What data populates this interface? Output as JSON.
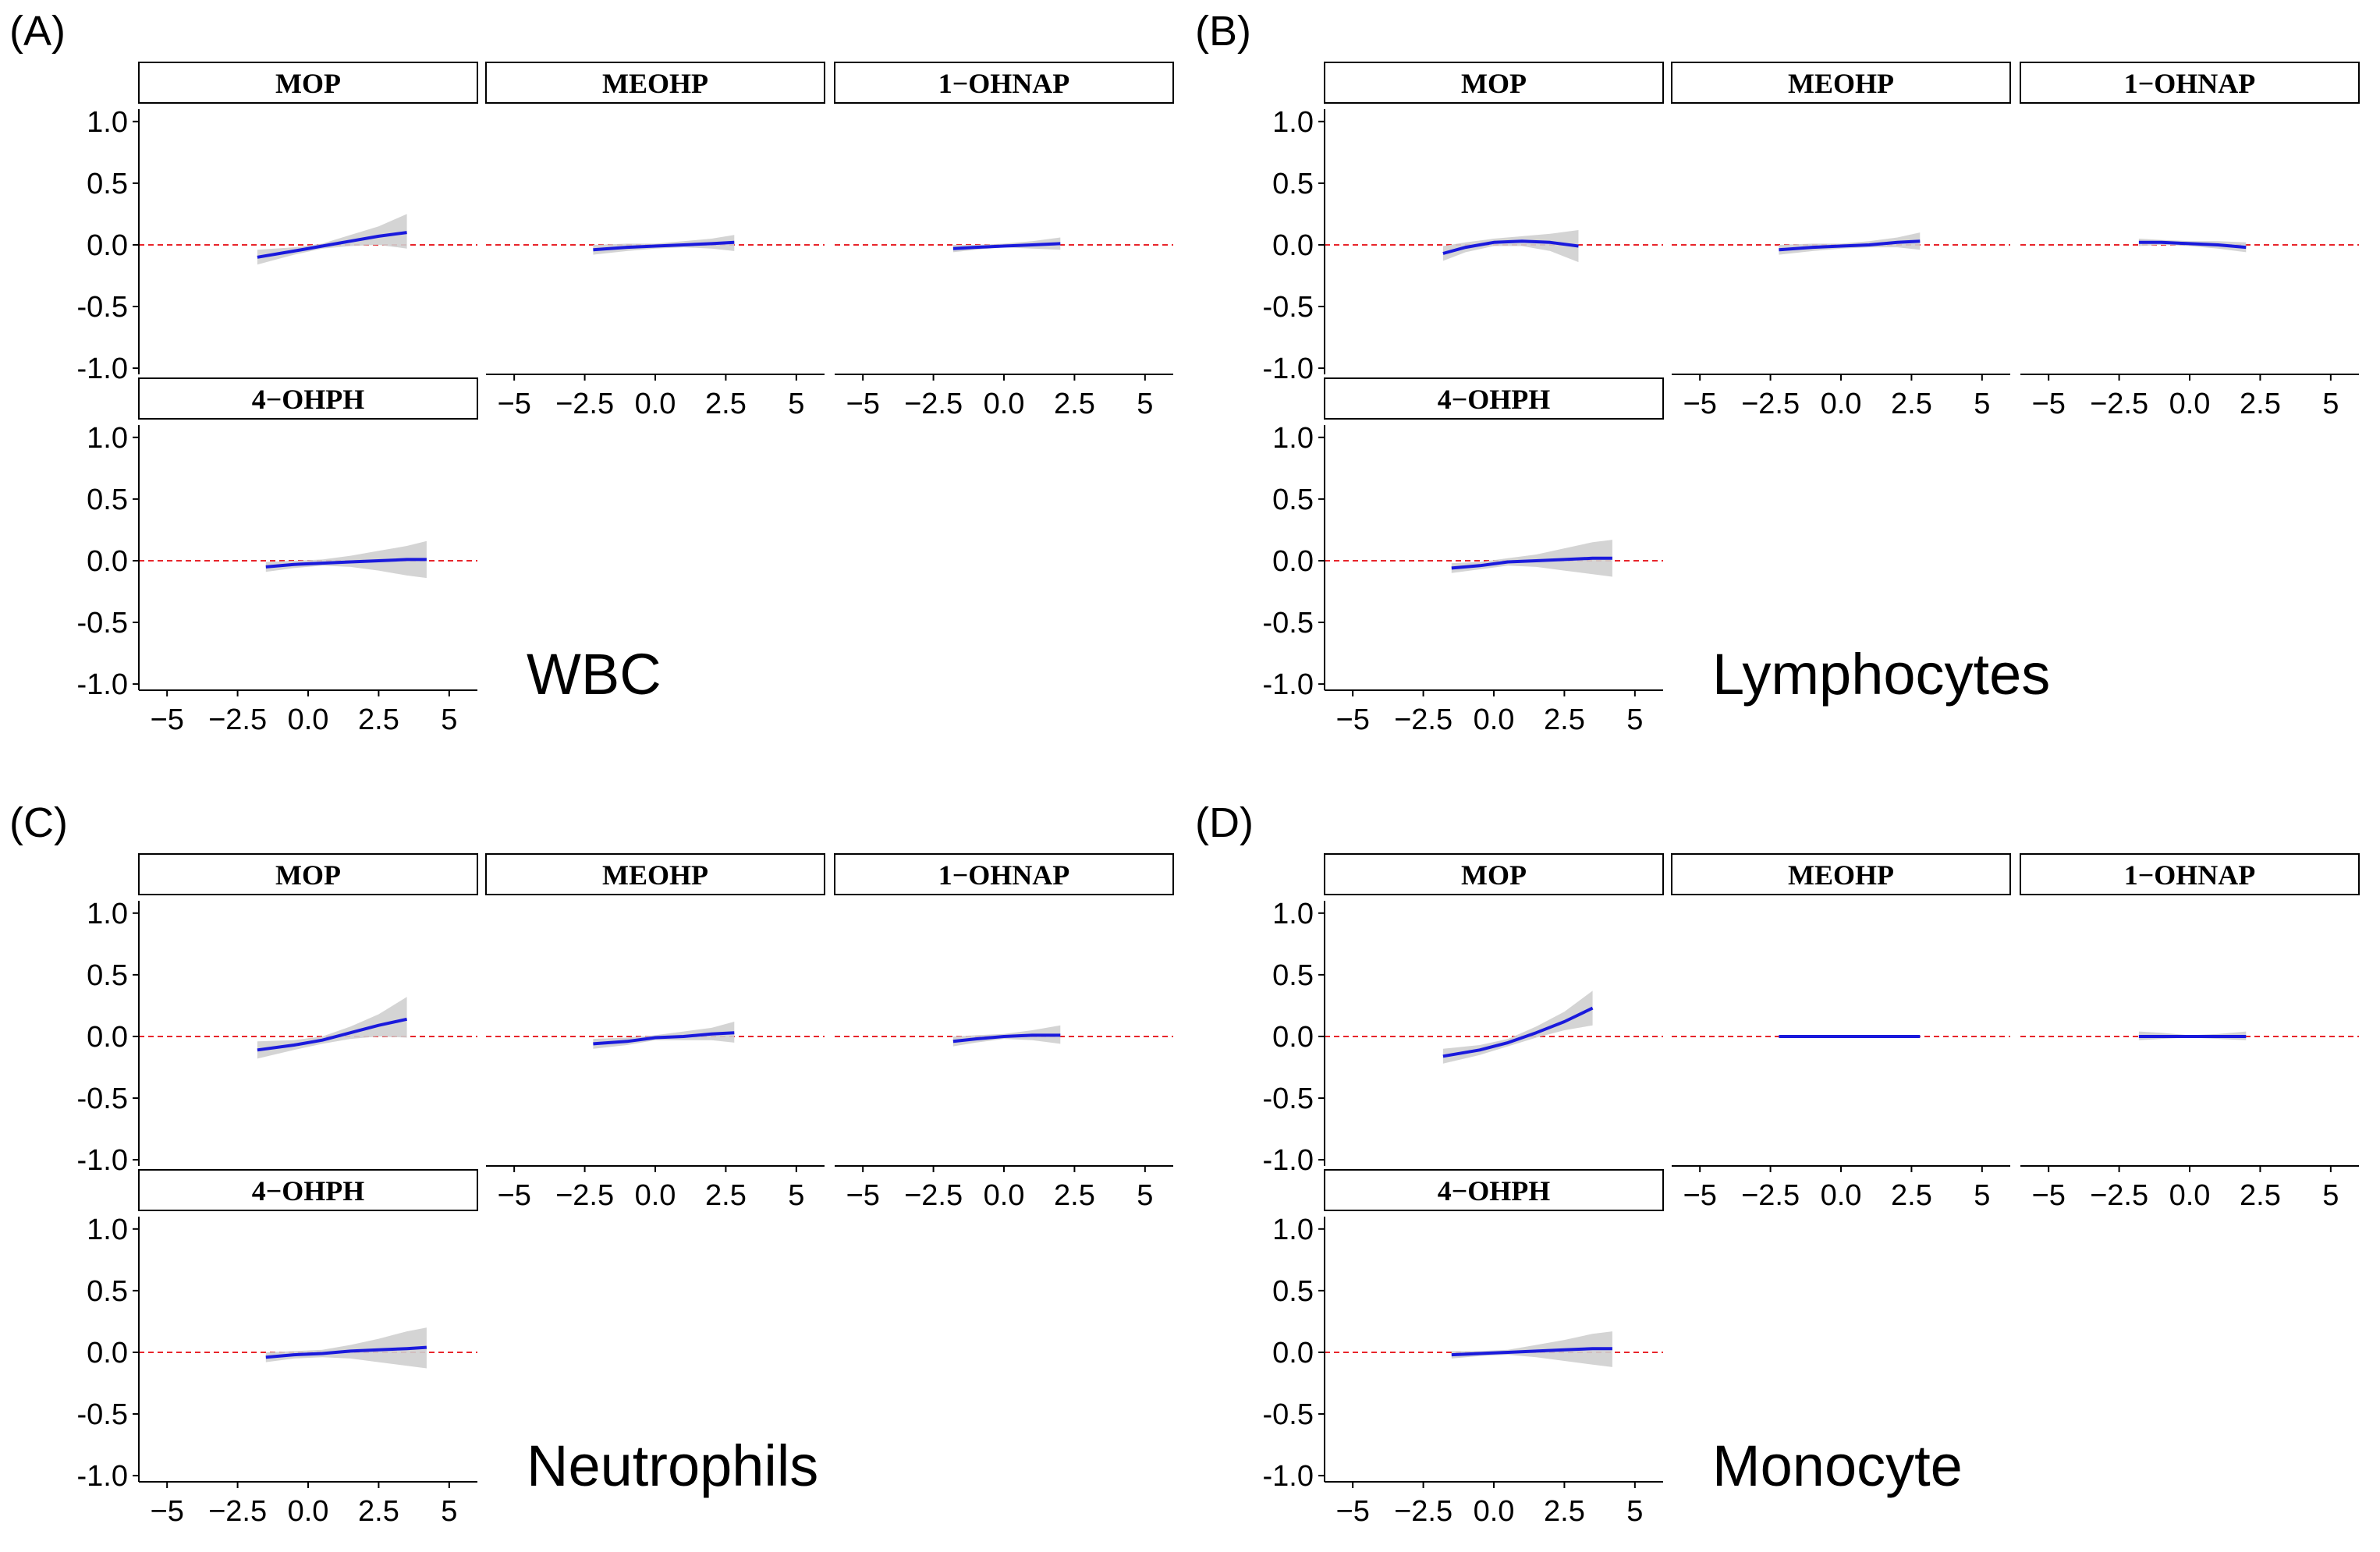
{
  "colors": {
    "line": "#1a1adc",
    "band": "#cfcfcf",
    "reference": "#e8252b",
    "axis": "#000000",
    "strip_fill": "#ffffff",
    "strip_border": "#000000"
  },
  "chart_data": [
    {
      "type": "line",
      "panel_label": "(A)",
      "outcome": "WBC",
      "xlim": [
        -6,
        6
      ],
      "ylim": [
        -1.05,
        1.1
      ],
      "xticks": [
        -5,
        -2.5,
        0,
        2.5,
        5
      ],
      "xtick_labels": [
        "−5",
        "−2.5",
        "0.0",
        "2.5",
        "5"
      ],
      "yticks": [
        1,
        0.5,
        0,
        -0.5,
        -1
      ],
      "ytick_labels": [
        "1.0",
        "0.5",
        "0.0",
        "-0.5",
        "-1.0"
      ],
      "reference_y": 0,
      "facets": [
        {
          "name": "MOP",
          "x": [
            -1.8,
            -0.5,
            0.5,
            1.5,
            2.5,
            3.5
          ],
          "y": [
            -0.1,
            -0.05,
            -0.01,
            0.03,
            0.07,
            0.1
          ],
          "lower": [
            -0.16,
            -0.08,
            -0.03,
            -0.01,
            0.0,
            -0.03
          ],
          "upper": [
            -0.04,
            -0.02,
            0.01,
            0.08,
            0.15,
            0.25
          ]
        },
        {
          "name": "MEOHP",
          "x": [
            -2.2,
            -1,
            0,
            1,
            2,
            2.8
          ],
          "y": [
            -0.04,
            -0.02,
            -0.01,
            0.0,
            0.01,
            0.02
          ],
          "lower": [
            -0.08,
            -0.05,
            -0.03,
            -0.02,
            -0.03,
            -0.05
          ],
          "upper": [
            0.0,
            0.01,
            0.01,
            0.03,
            0.05,
            0.08
          ]
        },
        {
          "name": "1−OHNAP",
          "x": [
            -1.8,
            -1,
            0,
            1,
            2
          ],
          "y": [
            -0.03,
            -0.02,
            -0.01,
            0.0,
            0.01
          ],
          "lower": [
            -0.06,
            -0.04,
            -0.02,
            -0.03,
            -0.04
          ],
          "upper": [
            0.0,
            0.0,
            0.01,
            0.03,
            0.06
          ]
        },
        {
          "name": "4−OHPH",
          "x": [
            -1.5,
            -0.5,
            0.5,
            1.5,
            2.5,
            3.5,
            4.2
          ],
          "y": [
            -0.05,
            -0.03,
            -0.02,
            -0.01,
            0.0,
            0.01,
            0.01
          ],
          "lower": [
            -0.09,
            -0.06,
            -0.04,
            -0.05,
            -0.08,
            -0.12,
            -0.14
          ],
          "upper": [
            -0.01,
            0.0,
            0.01,
            0.04,
            0.08,
            0.12,
            0.16
          ]
        }
      ]
    },
    {
      "type": "line",
      "panel_label": "(B)",
      "outcome": "Lymphocytes",
      "xlim": [
        -6,
        6
      ],
      "ylim": [
        -1.05,
        1.1
      ],
      "xticks": [
        -5,
        -2.5,
        0,
        2.5,
        5
      ],
      "xtick_labels": [
        "−5",
        "−2.5",
        "0.0",
        "2.5",
        "5"
      ],
      "yticks": [
        1,
        0.5,
        0,
        -0.5,
        -1
      ],
      "ytick_labels": [
        "1.0",
        "0.5",
        "0.0",
        "-0.5",
        "-1.0"
      ],
      "reference_y": 0,
      "facets": [
        {
          "name": "MOP",
          "x": [
            -1.8,
            -1,
            0,
            1,
            2,
            3
          ],
          "y": [
            -0.07,
            -0.02,
            0.02,
            0.03,
            0.02,
            -0.01
          ],
          "lower": [
            -0.13,
            -0.06,
            -0.01,
            -0.01,
            -0.05,
            -0.14
          ],
          "upper": [
            -0.01,
            0.02,
            0.05,
            0.07,
            0.09,
            0.12
          ]
        },
        {
          "name": "MEOHP",
          "x": [
            -2.2,
            -1,
            0,
            1,
            2,
            2.8
          ],
          "y": [
            -0.04,
            -0.02,
            -0.01,
            0.0,
            0.02,
            0.03
          ],
          "lower": [
            -0.08,
            -0.05,
            -0.03,
            -0.02,
            -0.02,
            -0.04
          ],
          "upper": [
            0.0,
            0.01,
            0.01,
            0.03,
            0.06,
            0.1
          ]
        },
        {
          "name": "1−OHNAP",
          "x": [
            -1.8,
            -1,
            0,
            1,
            2
          ],
          "y": [
            0.02,
            0.02,
            0.01,
            0.0,
            -0.02
          ],
          "lower": [
            -0.01,
            0.0,
            -0.01,
            -0.03,
            -0.06
          ],
          "upper": [
            0.05,
            0.04,
            0.03,
            0.03,
            0.02
          ]
        },
        {
          "name": "4−OHPH",
          "x": [
            -1.5,
            -0.5,
            0.5,
            1.5,
            2.5,
            3.5,
            4.2
          ],
          "y": [
            -0.06,
            -0.04,
            -0.01,
            0.0,
            0.01,
            0.02,
            0.02
          ],
          "lower": [
            -0.1,
            -0.07,
            -0.04,
            -0.05,
            -0.08,
            -0.11,
            -0.13
          ],
          "upper": [
            -0.02,
            -0.01,
            0.02,
            0.05,
            0.1,
            0.15,
            0.17
          ]
        }
      ]
    },
    {
      "type": "line",
      "panel_label": "(C)",
      "outcome": "Neutrophils",
      "xlim": [
        -6,
        6
      ],
      "ylim": [
        -1.05,
        1.1
      ],
      "xticks": [
        -5,
        -2.5,
        0,
        2.5,
        5
      ],
      "xtick_labels": [
        "−5",
        "−2.5",
        "0.0",
        "2.5",
        "5"
      ],
      "yticks": [
        1,
        0.5,
        0,
        -0.5,
        -1
      ],
      "ytick_labels": [
        "1.0",
        "0.5",
        "0.0",
        "-0.5",
        "-1.0"
      ],
      "reference_y": 0,
      "facets": [
        {
          "name": "MOP",
          "x": [
            -1.8,
            -0.5,
            0.5,
            1.5,
            2.5,
            3.5
          ],
          "y": [
            -0.11,
            -0.07,
            -0.03,
            0.03,
            0.09,
            0.14
          ],
          "lower": [
            -0.18,
            -0.11,
            -0.06,
            -0.02,
            0.0,
            -0.01
          ],
          "upper": [
            -0.04,
            -0.03,
            0.0,
            0.08,
            0.18,
            0.32
          ]
        },
        {
          "name": "MEOHP",
          "x": [
            -2.2,
            -1,
            0,
            1,
            2,
            2.8
          ],
          "y": [
            -0.06,
            -0.04,
            -0.01,
            0.0,
            0.02,
            0.03
          ],
          "lower": [
            -0.1,
            -0.07,
            -0.03,
            -0.03,
            -0.03,
            -0.05
          ],
          "upper": [
            -0.02,
            -0.01,
            0.01,
            0.04,
            0.07,
            0.12
          ]
        },
        {
          "name": "1−OHNAP",
          "x": [
            -1.8,
            -1,
            0,
            1,
            2
          ],
          "y": [
            -0.04,
            -0.02,
            0.0,
            0.01,
            0.01
          ],
          "lower": [
            -0.08,
            -0.05,
            -0.02,
            -0.03,
            -0.06
          ],
          "upper": [
            0.0,
            0.01,
            0.02,
            0.05,
            0.09
          ]
        },
        {
          "name": "4−OHPH",
          "x": [
            -1.5,
            -0.5,
            0.5,
            1.5,
            2.5,
            3.5,
            4.2
          ],
          "y": [
            -0.04,
            -0.02,
            -0.01,
            0.01,
            0.02,
            0.03,
            0.04
          ],
          "lower": [
            -0.08,
            -0.05,
            -0.04,
            -0.05,
            -0.08,
            -0.11,
            -0.13
          ],
          "upper": [
            0.0,
            0.01,
            0.02,
            0.06,
            0.11,
            0.17,
            0.2
          ]
        }
      ]
    },
    {
      "type": "line",
      "panel_label": "(D)",
      "outcome": "Monocyte",
      "xlim": [
        -6,
        6
      ],
      "ylim": [
        -1.05,
        1.1
      ],
      "xticks": [
        -5,
        -2.5,
        0,
        2.5,
        5
      ],
      "xtick_labels": [
        "−5",
        "−2.5",
        "0.0",
        "2.5",
        "5"
      ],
      "yticks": [
        1,
        0.5,
        0,
        -0.5,
        -1
      ],
      "ytick_labels": [
        "1.0",
        "0.5",
        "0.0",
        "-0.5",
        "-1.0"
      ],
      "reference_y": 0,
      "facets": [
        {
          "name": "MOP",
          "x": [
            -1.8,
            -0.5,
            0.5,
            1.5,
            2.5,
            3.5
          ],
          "y": [
            -0.16,
            -0.11,
            -0.05,
            0.03,
            0.12,
            0.23
          ],
          "lower": [
            -0.22,
            -0.15,
            -0.08,
            -0.01,
            0.05,
            0.09
          ],
          "upper": [
            -0.1,
            -0.07,
            -0.02,
            0.08,
            0.2,
            0.37
          ]
        },
        {
          "name": "MEOHP",
          "x": [
            -2.2,
            -1,
            0,
            1,
            2,
            2.8
          ],
          "y": [
            0.0,
            0.0,
            0.0,
            0.0,
            0.0,
            0.0
          ],
          "lower": [
            -0.01,
            -0.01,
            -0.01,
            -0.01,
            -0.01,
            -0.01
          ],
          "upper": [
            0.01,
            0.01,
            0.01,
            0.01,
            0.01,
            0.01
          ]
        },
        {
          "name": "1−OHNAP",
          "x": [
            -1.8,
            -1,
            0,
            1,
            2
          ],
          "y": [
            0.0,
            0.0,
            0.0,
            0.0,
            0.0
          ],
          "lower": [
            -0.03,
            -0.02,
            -0.01,
            -0.02,
            -0.03
          ],
          "upper": [
            0.04,
            0.03,
            0.01,
            0.02,
            0.04
          ]
        },
        {
          "name": "4−OHPH",
          "x": [
            -1.5,
            -0.5,
            0.5,
            1.5,
            2.5,
            3.5,
            4.2
          ],
          "y": [
            -0.02,
            -0.01,
            0.0,
            0.01,
            0.02,
            0.03,
            0.03
          ],
          "lower": [
            -0.05,
            -0.03,
            -0.02,
            -0.04,
            -0.07,
            -0.1,
            -0.12
          ],
          "upper": [
            0.01,
            0.01,
            0.02,
            0.06,
            0.1,
            0.15,
            0.17
          ]
        }
      ]
    }
  ]
}
